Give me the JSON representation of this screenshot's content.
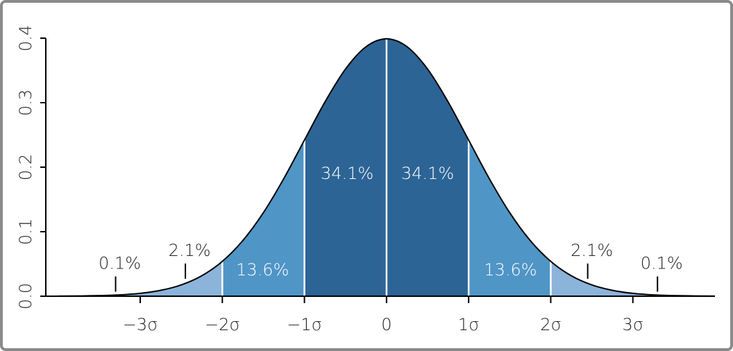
{
  "chart_data": {
    "type": "normal-area",
    "x": [
      -4,
      -3.75,
      -3.5,
      -3.25,
      -3,
      -2.75,
      -2.5,
      -2.25,
      -2,
      -1.75,
      -1.5,
      -1.25,
      -1,
      -0.75,
      -0.5,
      -0.25,
      0,
      0.25,
      0.5,
      0.75,
      1,
      1.25,
      1.5,
      1.75,
      2,
      2.25,
      2.5,
      2.75,
      3,
      3.25,
      3.5,
      3.75,
      4
    ],
    "values": [
      0.0001,
      0.0004,
      0.0009,
      0.002,
      0.0044,
      0.0091,
      0.0175,
      0.0317,
      0.054,
      0.0863,
      0.1295,
      0.1826,
      0.242,
      0.3011,
      0.3521,
      0.3867,
      0.3989,
      0.3867,
      0.3521,
      0.3011,
      0.242,
      0.1826,
      0.1295,
      0.0863,
      0.054,
      0.0317,
      0.0175,
      0.0091,
      0.0044,
      0.002,
      0.0009,
      0.0004,
      0.0001
    ],
    "color": "#000000",
    "boundaries": [
      -2,
      -1,
      1,
      2
    ],
    "band_colors": [
      "#8cb3d9",
      "#4f95c6",
      "#2d6496",
      "#4f95c6",
      "#8cb3d9"
    ],
    "dividers": [
      -2,
      -1,
      0,
      1,
      2
    ],
    "xlim": [
      -4.15,
      4.0
    ],
    "ylim": [
      0,
      0.4
    ],
    "xticks": [
      {
        "value": -3,
        "label": "−3σ"
      },
      {
        "value": -2,
        "label": "−2σ"
      },
      {
        "value": -1,
        "label": "−1σ"
      },
      0,
      {
        "value": 1,
        "label": "1σ"
      },
      {
        "value": 2,
        "label": "2σ"
      },
      {
        "value": 3,
        "label": "3σ"
      }
    ],
    "yticks": [
      {
        "value": 0,
        "label": "0.0"
      },
      0.1,
      0.2,
      0.3,
      0.4
    ],
    "annotations": [
      {
        "text": "0.1%",
        "x": -3.3,
        "y": 0.05,
        "pointer": true,
        "color": "#222222"
      },
      {
        "text": "2.1%",
        "x": -2.45,
        "y": 0.07,
        "pointer": true,
        "color": "#222222"
      },
      {
        "text": "13.6%",
        "x": -1.51,
        "y": 0.04,
        "pointer": false,
        "color": "#ffffff"
      },
      {
        "text": "34.1%",
        "x": -0.48,
        "y": 0.189,
        "pointer": false,
        "color": "#ffffff"
      },
      {
        "text": "34.1%",
        "x": 0.5,
        "y": 0.189,
        "pointer": false,
        "color": "#ffffff"
      },
      {
        "text": "13.6%",
        "x": 1.51,
        "y": 0.04,
        "pointer": false,
        "color": "#ffffff"
      },
      {
        "text": "2.1%",
        "x": 2.45,
        "y": 0.07,
        "pointer": true,
        "color": "#222222"
      },
      {
        "text": "0.1%",
        "x": 3.3,
        "y": 0.05,
        "pointer": true,
        "color": "#222222"
      }
    ]
  }
}
